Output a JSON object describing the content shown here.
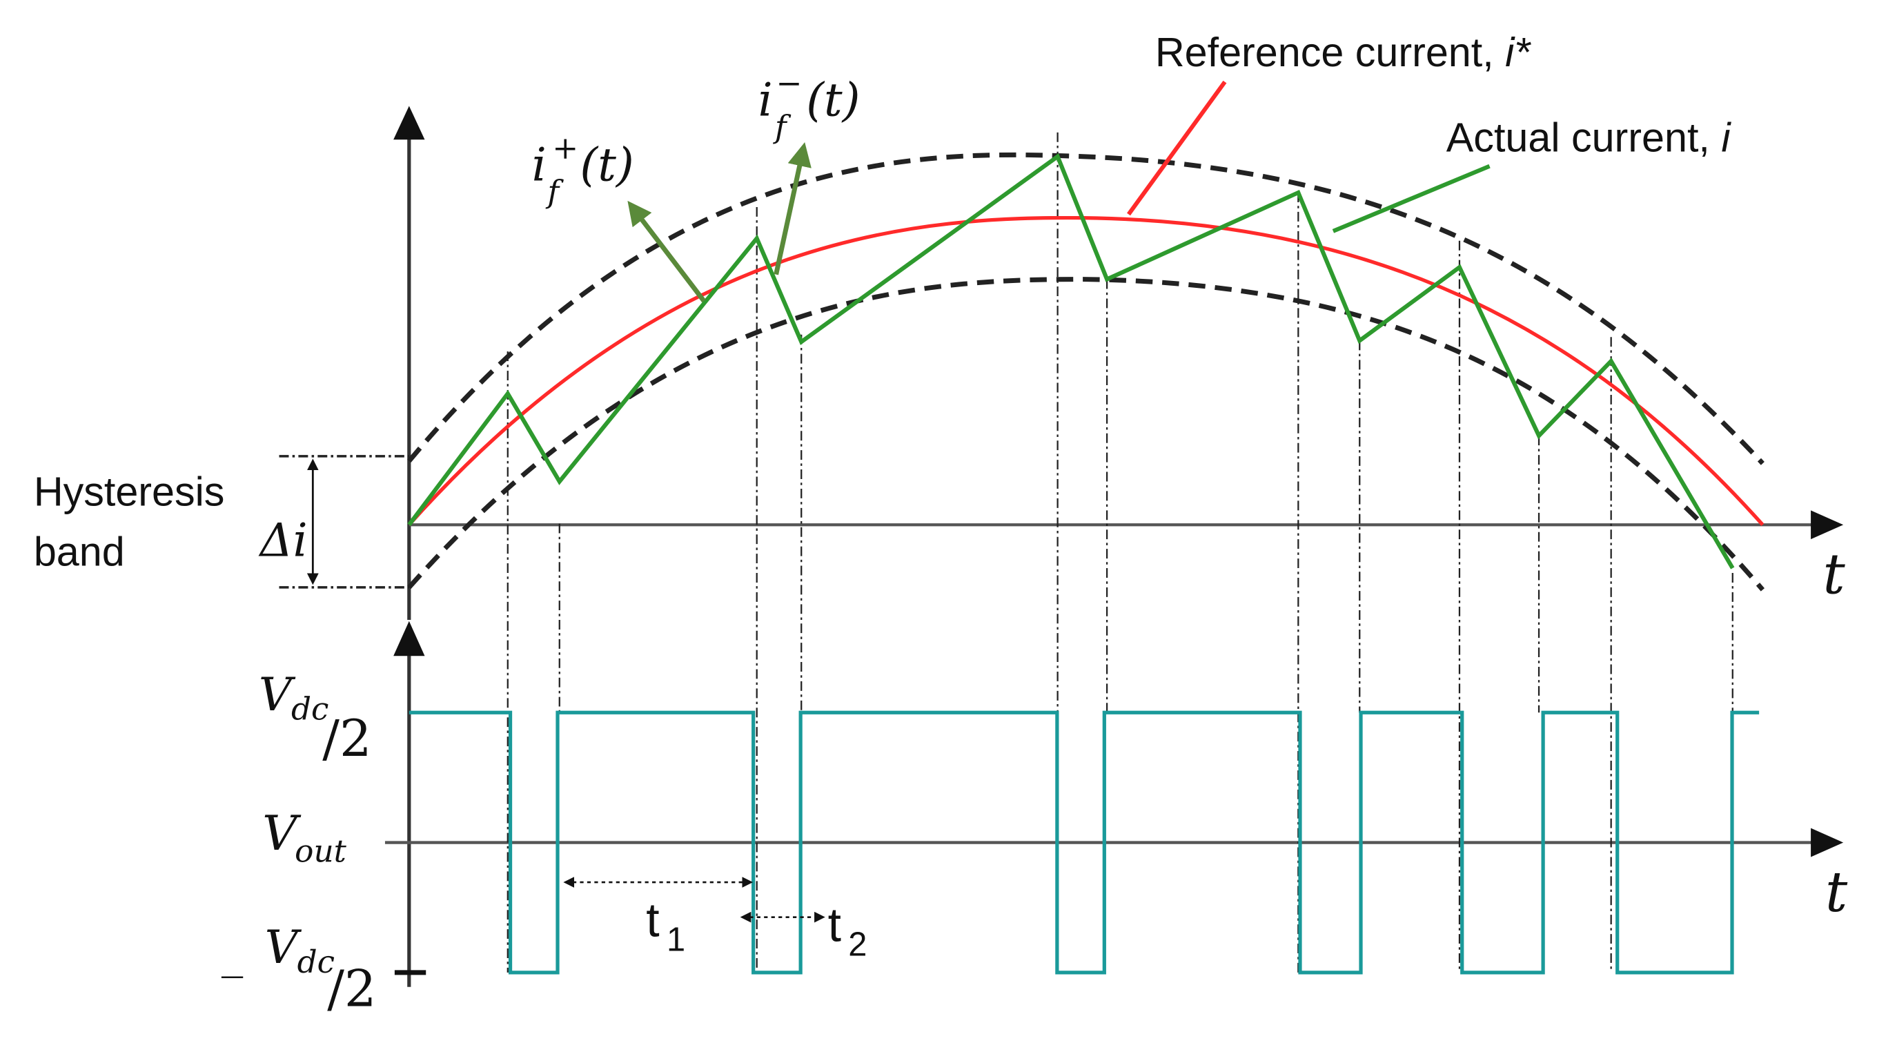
{
  "labels": {
    "reference_current": "Reference current, ",
    "reference_current_symbol": "i*",
    "actual_current": "Actual current, ",
    "actual_current_symbol": "i",
    "hysteresis_line1": "Hysteresis",
    "hysteresis_line2": "band",
    "delta_i": "Δi",
    "time_top": "t",
    "time_bottom": "t",
    "if_plus_base": "i",
    "if_plus_sup": "+",
    "if_plus_sub": "f",
    "if_plus_arg": "(t)",
    "if_minus_base": "i",
    "if_minus_sup": "−",
    "if_minus_sub": "f",
    "if_minus_arg": "(t)",
    "vdc_pos_v": "V",
    "vdc_pos_sub": "dc",
    "vdc_pos_den": "/2",
    "vout_v": "V",
    "vout_sub": "out",
    "vdc_neg_sign": "_",
    "vdc_neg_v": "V",
    "vdc_neg_sub": "dc",
    "vdc_neg_den": "/2",
    "t1_base": "t",
    "t1_sub": "1",
    "t2_base": "t",
    "t2_sub": "2"
  },
  "colors": {
    "reference": "#ff2a2a",
    "actual": "#2e9a2e",
    "actual_arrow": "#5a8a3a",
    "output": "#1a9a9a",
    "band": "#222222",
    "axes": "#333333"
  },
  "switching_instants": [
    {
      "t": 0.075,
      "v": -1
    },
    {
      "t": 0.11,
      "v": 1
    },
    {
      "t": 0.255,
      "v": -1
    },
    {
      "t": 0.29,
      "v": 1
    },
    {
      "t": 0.48,
      "v": -1
    },
    {
      "t": 0.515,
      "v": 1
    },
    {
      "t": 0.66,
      "v": -1
    },
    {
      "t": 0.705,
      "v": 1
    },
    {
      "t": 0.78,
      "v": -1
    },
    {
      "t": 0.84,
      "v": 1
    },
    {
      "t": 0.895,
      "v": -1
    },
    {
      "t": 0.98,
      "v": 1
    }
  ]
}
